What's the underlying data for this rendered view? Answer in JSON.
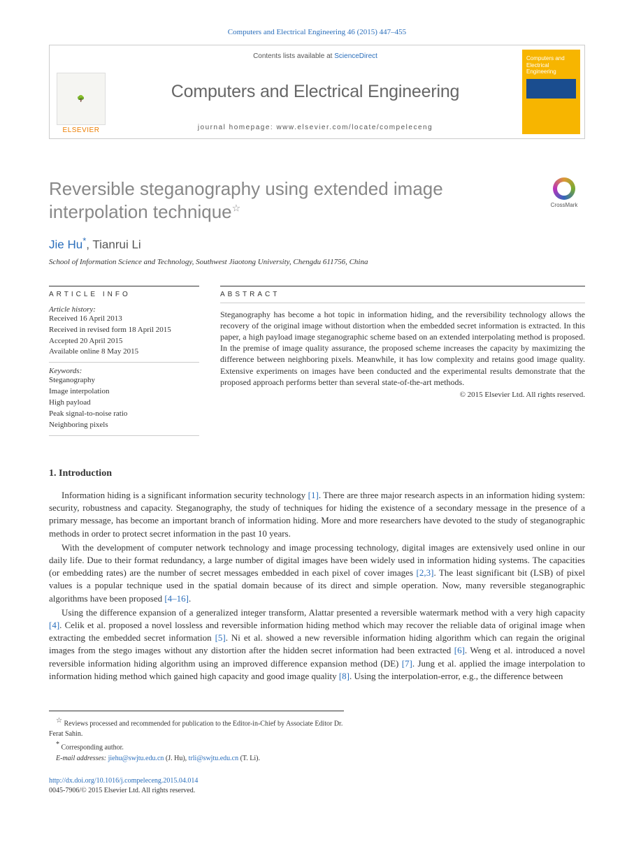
{
  "citation": "Computers and Electrical Engineering 46 (2015) 447–455",
  "masthead": {
    "publisher": "ELSEVIER",
    "contents_prefix": "Contents lists available at ",
    "contents_link": "ScienceDirect",
    "journal": "Computers and Electrical Engineering",
    "homepage_prefix": "journal homepage: ",
    "homepage_url": "www.elsevier.com/locate/compeleceng",
    "cover_title": "Computers and Electrical Engineering"
  },
  "article": {
    "title": "Reversible steganography using extended image interpolation technique",
    "title_note_mark": "☆",
    "crossmark": "CrossMark"
  },
  "authors": {
    "a1_name": "Jie Hu",
    "a1_corr": "*",
    "sep": ", ",
    "a2_name": "Tianrui Li"
  },
  "affiliation": "School of Information Science and Technology, Southwest Jiaotong University, Chengdu 611756, China",
  "info": {
    "head": "ARTICLE INFO",
    "history_label": "Article history:",
    "h1": "Received 16 April 2013",
    "h2": "Received in revised form 18 April 2015",
    "h3": "Accepted 20 April 2015",
    "h4": "Available online 8 May 2015",
    "keywords_label": "Keywords:",
    "k1": "Steganography",
    "k2": "Image interpolation",
    "k3": "High payload",
    "k4": "Peak signal-to-noise ratio",
    "k5": "Neighboring pixels"
  },
  "abstract": {
    "head": "ABSTRACT",
    "text": "Steganography has become a hot topic in information hiding, and the reversibility technology allows the recovery of the original image without distortion when the embedded secret information is extracted. In this paper, a high payload image steganographic scheme based on an extended interpolating method is proposed. In the premise of image quality assurance, the proposed scheme increases the capacity by maximizing the difference between neighboring pixels. Meanwhile, it has low complexity and retains good image quality. Extensive experiments on images have been conducted and the experimental results demonstrate that the proposed approach performs better than several state-of-the-art methods.",
    "copyright": "© 2015 Elsevier Ltd. All rights reserved."
  },
  "section1": {
    "heading": "1. Introduction",
    "p1_a": "Information hiding is a significant information security technology ",
    "p1_r1": "[1]",
    "p1_b": ". There are three major research aspects in an information hiding system: security, robustness and capacity. Steganography, the study of techniques for hiding the existence of a secondary message in the presence of a primary message, has become an important branch of information hiding. More and more researchers have devoted to the study of steganographic methods in order to protect secret information in the past 10 years.",
    "p2_a": "With the development of computer network technology and image processing technology, digital images are extensively used online in our daily life. Due to their format redundancy, a large number of digital images have been widely used in information hiding systems. The capacities (or embedding rates) are the number of secret messages embedded in each pixel of cover images ",
    "p2_r1": "[2,3]",
    "p2_b": ". The least significant bit (LSB) of pixel values is a popular technique used in the spatial domain because of its direct and simple operation. Now, many reversible steganographic algorithms have been proposed ",
    "p2_r2": "[4–16]",
    "p2_c": ".",
    "p3_a": "Using the difference expansion of a generalized integer transform, Alattar presented a reversible watermark method with a very high capacity ",
    "p3_r1": "[4]",
    "p3_b": ". Celik et al. proposed a novel lossless and reversible information hiding method which may recover the reliable data of original image when extracting the embedded secret information ",
    "p3_r2": "[5]",
    "p3_c": ". Ni et al. showed a new reversible information hiding algorithm which can regain the original images from the stego images without any distortion after the hidden secret information had been extracted ",
    "p3_r3": "[6]",
    "p3_d": ". Weng et al. introduced a novel reversible information hiding algorithm using an improved difference expansion method (DE) ",
    "p3_r4": "[7]",
    "p3_e": ". Jung et al. applied the image interpolation to information hiding method which gained high capacity and good image quality ",
    "p3_r5": "[8]",
    "p3_f": ". Using the interpolation-error, e.g., the difference between"
  },
  "footnotes": {
    "n1_mark": "☆",
    "n1_text": " Reviews processed and recommended for publication to the Editor-in-Chief by Associate Editor Dr. Ferat Sahin.",
    "n2_mark": "*",
    "n2_text": " Corresponding author.",
    "email_label": "E-mail addresses: ",
    "e1": "jiehu@swjtu.edu.cn",
    "e1_who": " (J. Hu), ",
    "e2": "trli@swjtu.edu.cn",
    "e2_who": " (T. Li)."
  },
  "doi": {
    "url": "http://dx.doi.org/10.1016/j.compeleceng.2015.04.014",
    "issn_line": "0045-7906/© 2015 Elsevier Ltd. All rights reserved."
  },
  "colors": {
    "link": "#2a6ebb",
    "title_gray": "#888888",
    "orange": "#ed7d00",
    "cover_yellow": "#f7b500"
  }
}
